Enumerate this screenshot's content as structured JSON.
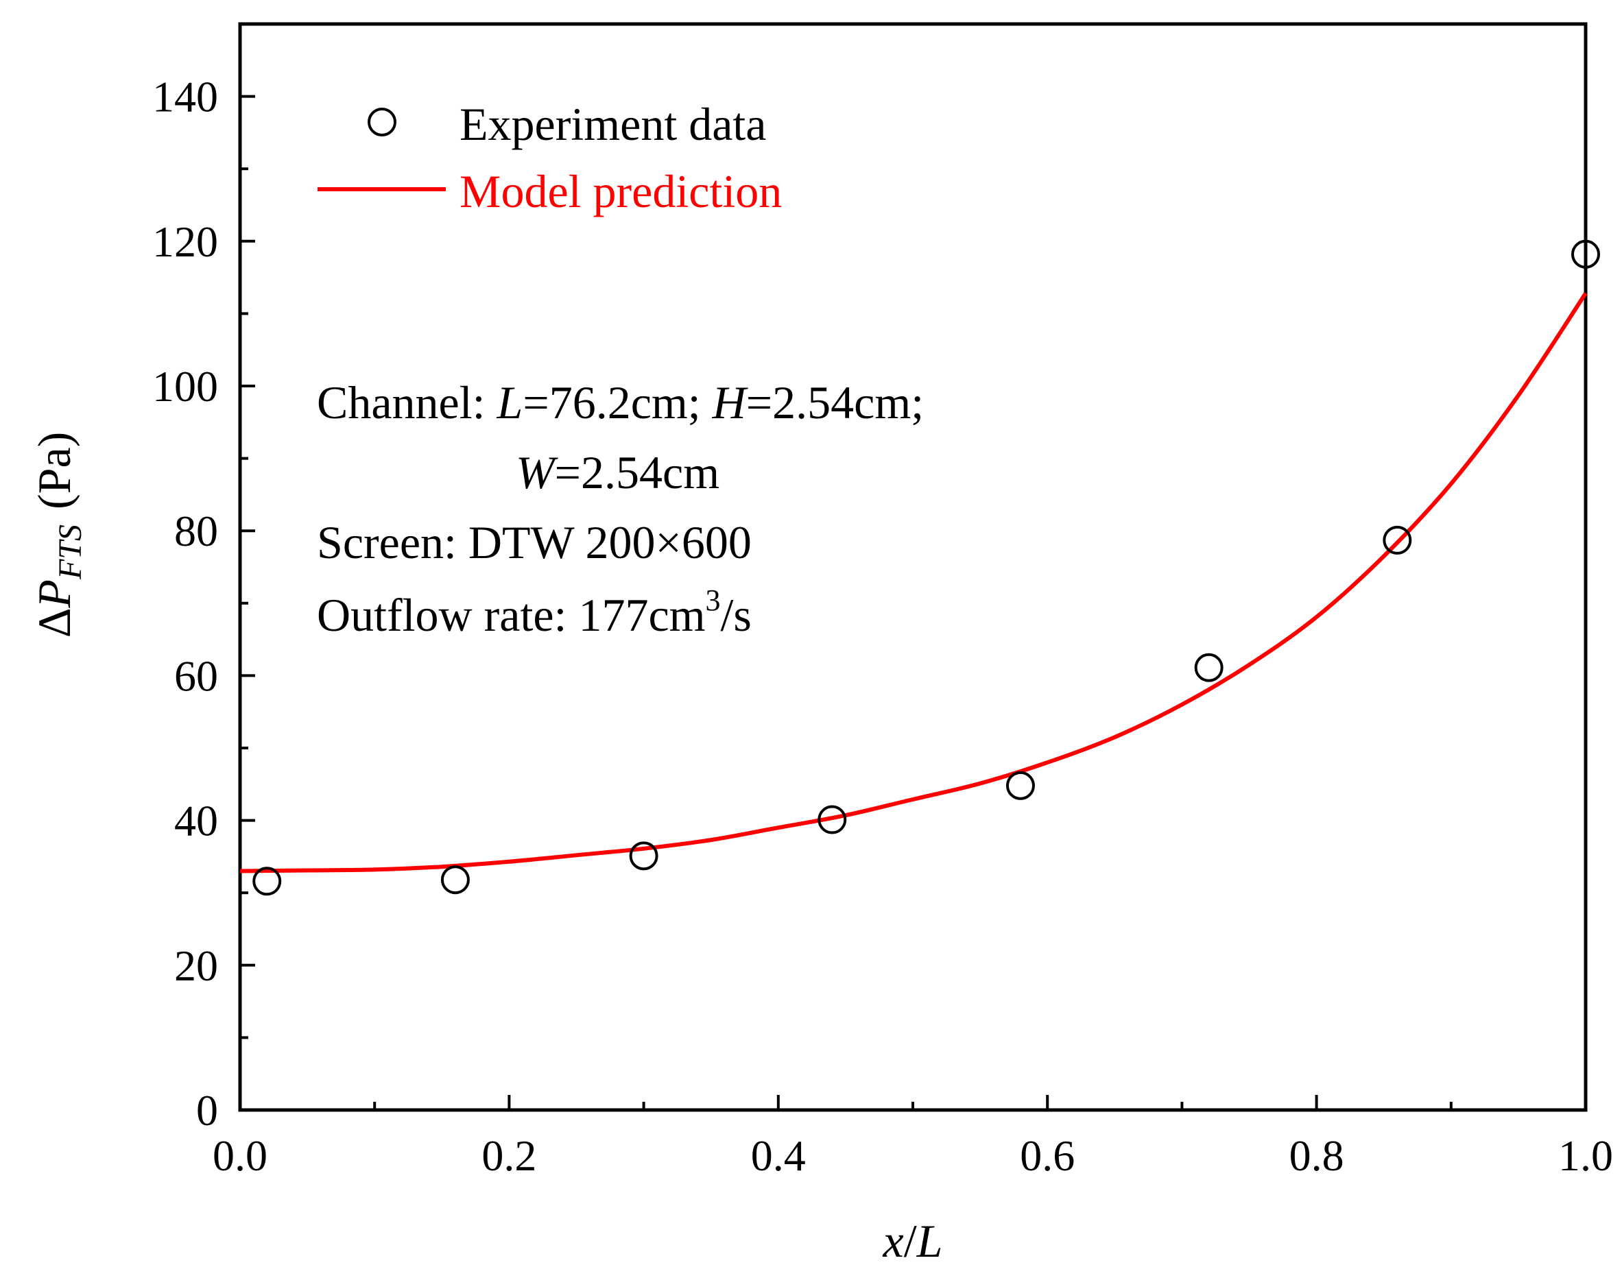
{
  "chart_data": {
    "type": "scatter",
    "title": "",
    "xlabel": {
      "var": "x",
      "sep": "/",
      "den": "L"
    },
    "ylabel": {
      "delta": "Δ",
      "sym": "P",
      "sub": "FTS",
      "unit": "(Pa)"
    },
    "xlim": [
      0.0,
      1.0
    ],
    "ylim": [
      0,
      150
    ],
    "x_ticks": [
      0.0,
      0.2,
      0.4,
      0.6,
      0.8,
      1.0
    ],
    "x_tick_labels": [
      "0.0",
      "0.2",
      "0.4",
      "0.6",
      "0.8",
      "1.0"
    ],
    "x_minor_ticks": [
      0.1,
      0.3,
      0.5,
      0.7,
      0.9
    ],
    "y_ticks": [
      0,
      20,
      40,
      60,
      80,
      100,
      120,
      140
    ],
    "y_tick_labels": [
      "0",
      "20",
      "40",
      "60",
      "80",
      "100",
      "120",
      "140"
    ],
    "y_minor_ticks": [
      10,
      30,
      50,
      70,
      90,
      110,
      130
    ],
    "grid": false,
    "legend_position": "top-left",
    "series": [
      {
        "name": "Experiment data",
        "kind": "scatter",
        "marker": "open-circle",
        "color": "#000000",
        "x": [
          0.02,
          0.16,
          0.3,
          0.44,
          0.58,
          0.72,
          0.86,
          1.0
        ],
        "y": [
          31.6,
          31.8,
          35.1,
          40.1,
          44.8,
          61.1,
          78.7,
          118.2
        ]
      },
      {
        "name": "Model prediction",
        "kind": "line",
        "color": "#ff0000",
        "x": [
          0.0,
          0.05,
          0.1,
          0.15,
          0.2,
          0.25,
          0.3,
          0.35,
          0.4,
          0.45,
          0.5,
          0.55,
          0.6,
          0.65,
          0.7,
          0.75,
          0.8,
          0.85,
          0.9,
          0.95,
          1.0
        ],
        "y": [
          33.0,
          33.1,
          33.2,
          33.6,
          34.3,
          35.2,
          36.1,
          37.3,
          39.0,
          40.7,
          42.9,
          45.1,
          48.0,
          51.5,
          56.0,
          61.5,
          68.1,
          76.5,
          86.5,
          98.7,
          112.8
        ]
      }
    ],
    "annotations": {
      "channel": {
        "prefix": "Channel: ",
        "L_var": "L",
        "L_val": "=76.2cm; ",
        "H_var": "H",
        "H_val": "=2.54cm;",
        "W_var": "W",
        "W_val": "=2.54cm"
      },
      "screen": "Screen: DTW 200×600",
      "outflow": {
        "text": "Outflow rate: 177cm",
        "sup": "3",
        "suffix": "/s"
      }
    }
  }
}
